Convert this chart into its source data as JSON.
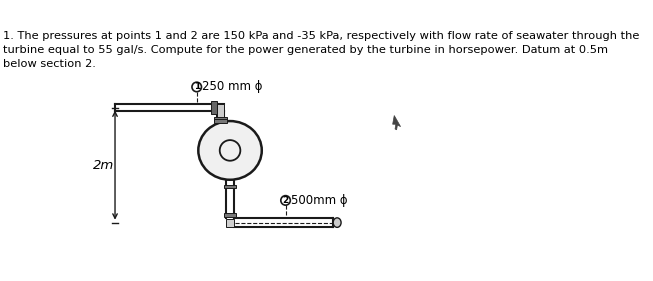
{
  "title_text": "1. The pressures at points 1 and 2 are 150 kPa and -35 kPa, respectively with flow rate of seawater through the\nturbine equal to 55 gal/s. Compute for the power generated by the turbine in horsepower. Datum at 0.5m\nbelow section 2.",
  "label_250mm": "250 mm ϕ",
  "label_500mm": "500mm ϕ",
  "label_2m": "2m",
  "bg_color": "#ffffff",
  "pipe_color": "#1a1a1a",
  "lw": 1.5,
  "font_size_title": 8.2,
  "font_size_labels": 8.5
}
